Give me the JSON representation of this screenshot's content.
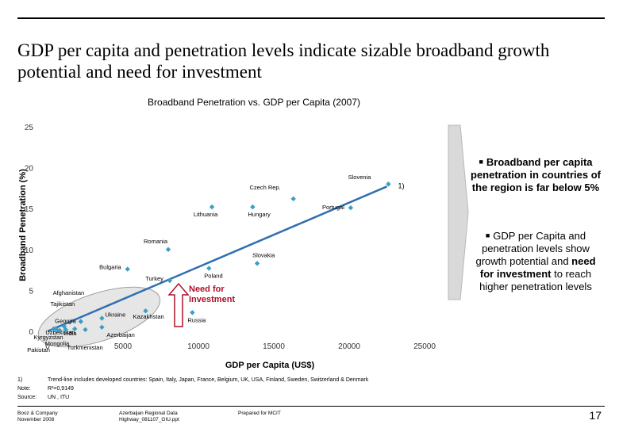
{
  "header": {
    "title": "GDP per capita and penetration levels indicate sizable broadband growth potential and need for investment"
  },
  "chart_data": {
    "type": "scatter",
    "title": "Broadband Penetration vs. GDP per Capita (2007)",
    "xlabel": "GDP per Capita (US$)",
    "ylabel": "Broadband Penetration (%)",
    "xlim": [
      0,
      25000
    ],
    "ylim": [
      0,
      25
    ],
    "xticks": [
      0,
      5000,
      10000,
      15000,
      20000,
      25000
    ],
    "xtick_labels": [
      "0",
      "5000",
      "10000",
      "15000",
      "20000",
      "25000"
    ],
    "yticks": [
      0,
      5,
      10,
      15,
      20,
      25
    ],
    "ytick_labels": [
      "0",
      "5",
      "10",
      "15",
      "20",
      "25"
    ],
    "marker_color": "#3a9fc4",
    "trendline_color": "#2f6fb0",
    "trendline": {
      "x": [
        0,
        22500
      ],
      "y": [
        0,
        17.7
      ],
      "label": "1)"
    },
    "points": [
      {
        "name": "Slovenia",
        "x": 22600,
        "y": 18.0
      },
      {
        "name": "Czech Rep.",
        "x": 16300,
        "y": 16.2
      },
      {
        "name": "Portugal",
        "x": 20100,
        "y": 15.1
      },
      {
        "name": "Lithuania",
        "x": 10900,
        "y": 15.2
      },
      {
        "name": "Hungary",
        "x": 13600,
        "y": 15.2
      },
      {
        "name": "Romania",
        "x": 8000,
        "y": 10.0
      },
      {
        "name": "Slovakia",
        "x": 13900,
        "y": 8.3
      },
      {
        "name": "Bulgaria",
        "x": 5300,
        "y": 7.6
      },
      {
        "name": "Poland",
        "x": 10700,
        "y": 7.7
      },
      {
        "name": "Turkey",
        "x": 8100,
        "y": 6.2
      },
      {
        "name": "Russia",
        "x": 9600,
        "y": 2.3
      },
      {
        "name": "Kazakhstan",
        "x": 6500,
        "y": 2.5
      },
      {
        "name": "Ukraine",
        "x": 3600,
        "y": 1.6
      },
      {
        "name": "Azerbaijan",
        "x": 3600,
        "y": 0.5
      },
      {
        "name": "Georgia",
        "x": 2200,
        "y": 1.2
      },
      {
        "name": "Uzbekistan",
        "x": 1100,
        "y": 0.6
      },
      {
        "name": "Afghanistan",
        "x": 400,
        "y": 0.3
      },
      {
        "name": "Tajikistan",
        "x": 500,
        "y": 0.3
      },
      {
        "name": "India",
        "x": 1800,
        "y": 0.3
      },
      {
        "name": "Kyrgyzstan",
        "x": 600,
        "y": 0.2
      },
      {
        "name": "Mongolia",
        "x": 1200,
        "y": 0.2
      },
      {
        "name": "Pakistan",
        "x": 800,
        "y": 0.1
      },
      {
        "name": "Turkmenistan",
        "x": 2500,
        "y": 0.2
      }
    ],
    "annotation": {
      "text": "Need for Investment",
      "color": "#b0102a"
    }
  },
  "bullets": [
    {
      "parts": [
        {
          "text": "Broadband per capita penetration in countries of the region is far ",
          "bold": true
        },
        {
          "text": "below 5%",
          "bold": true
        }
      ]
    },
    {
      "parts": [
        {
          "text": "GDP per Capita and penetration levels show growth potential and ",
          "bold": false
        },
        {
          "text": "need for investment",
          "bold": true
        },
        {
          "text": " to reach higher penetration levels",
          "bold": false
        }
      ]
    }
  ],
  "footnotes": [
    {
      "key": "1)",
      "text": "Trend-line includes developed countries: Spain, Italy, Japan, France, Belgium, UK, USA, Finland, Sweden, Switzerland & Denmark"
    },
    {
      "key": "Note:",
      "text": "R²=0,9149"
    },
    {
      "key": "Source:",
      "text": "UN , ITU"
    }
  ],
  "footer": {
    "company": "Booz & Company\nNovember 2008",
    "file": "Azerbaijan Regional Data\nHighway_081107_GIU.ppt",
    "prepared": "Prepared for MCIT",
    "page": "17"
  }
}
